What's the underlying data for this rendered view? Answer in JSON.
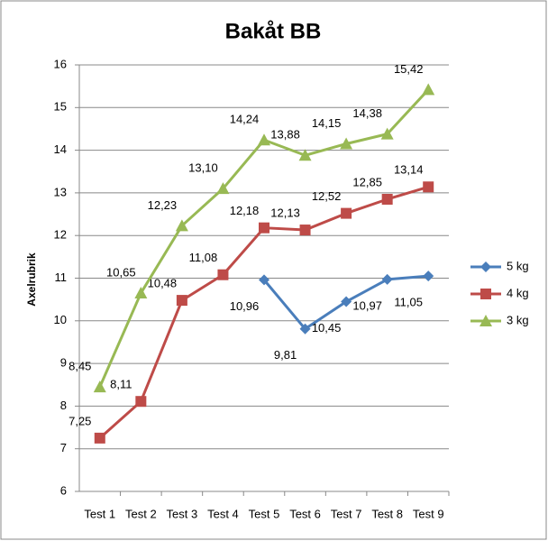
{
  "chart_data": {
    "type": "line",
    "title": "Bakåt BB",
    "y_label": "Axelrubrik",
    "categories": [
      "Test 1",
      "Test 2",
      "Test 3",
      "Test 4",
      "Test 5",
      "Test 6",
      "Test 7",
      "Test 8",
      "Test 9"
    ],
    "series": [
      {
        "name": "5 kg",
        "color": "#4a7ebb",
        "marker": "diamond",
        "values": [
          null,
          null,
          null,
          null,
          10.96,
          9.81,
          10.45,
          10.97,
          11.05
        ],
        "value_labels": [
          null,
          null,
          null,
          null,
          "10,96",
          "9,81",
          "10,45",
          "10,97",
          "11,05"
        ]
      },
      {
        "name": "4 kg",
        "color": "#be4b48",
        "marker": "square",
        "values": [
          7.25,
          8.11,
          10.48,
          11.08,
          12.18,
          12.13,
          12.52,
          12.85,
          13.14
        ],
        "value_labels": [
          "7,25",
          "8,11",
          "10,48",
          "11,08",
          "12,18",
          "12,13",
          "12,52",
          "12,85",
          "13,14"
        ]
      },
      {
        "name": "3 kg",
        "color": "#98b954",
        "marker": "triangle",
        "values": [
          8.45,
          10.65,
          12.23,
          13.1,
          14.24,
          13.88,
          14.15,
          14.38,
          15.42
        ],
        "value_labels": [
          "8,45",
          "10,65",
          "12,23",
          "13,10",
          "14,24",
          "13,88",
          "14,15",
          "14,38",
          "15,42"
        ]
      }
    ],
    "ylim": [
      6,
      16
    ],
    "yticks": [
      6,
      7,
      8,
      9,
      10,
      11,
      12,
      13,
      14,
      15,
      16
    ],
    "grid": true,
    "legend": "right"
  }
}
